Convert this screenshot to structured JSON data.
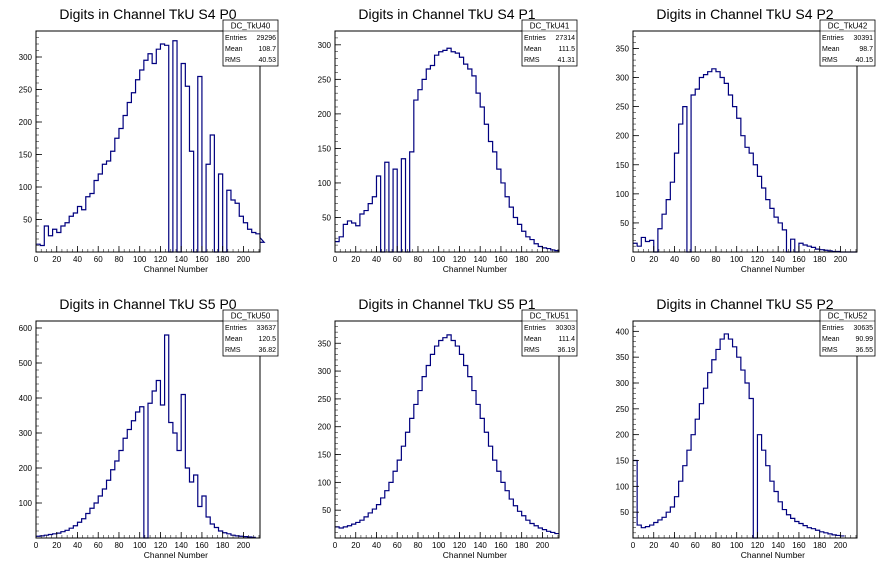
{
  "chart_data": [
    {
      "id": "DC_TkU40",
      "type": "histogram",
      "title": "Digits in Channel TkU S4 P0",
      "xlabel": "Channel Number",
      "xlim": [
        0,
        216
      ],
      "ylim": [
        0,
        340
      ],
      "xticks": [
        0,
        20,
        40,
        60,
        80,
        100,
        120,
        140,
        160,
        180,
        200
      ],
      "yticks": [
        50,
        100,
        150,
        200,
        250,
        300
      ],
      "stats": {
        "name": "DC_TkU40",
        "entries": "29296",
        "mean": "108.7",
        "rms": "40.53"
      },
      "bin_width": 4,
      "values": [
        12,
        10,
        40,
        25,
        35,
        30,
        40,
        45,
        55,
        60,
        70,
        65,
        85,
        90,
        110,
        120,
        135,
        140,
        155,
        175,
        190,
        210,
        230,
        245,
        265,
        280,
        295,
        305,
        290,
        312,
        320,
        318,
        0,
        325,
        0,
        290,
        255,
        155,
        0,
        270,
        0,
        135,
        180,
        0,
        120,
        0,
        95,
        80,
        75,
        55,
        45,
        35,
        30,
        28,
        22,
        15
      ]
    },
    {
      "id": "DC_TkU41",
      "type": "histogram",
      "title": "Digits in Channel TkU S4 P1",
      "xlabel": "Channel Number",
      "xlim": [
        0,
        216
      ],
      "ylim": [
        0,
        320
      ],
      "xticks": [
        0,
        20,
        40,
        60,
        80,
        100,
        120,
        140,
        160,
        180,
        200
      ],
      "yticks": [
        50,
        100,
        150,
        200,
        250,
        300
      ],
      "stats": {
        "name": "DC_TkU41",
        "entries": "27314",
        "mean": "111.5",
        "rms": "41.31"
      },
      "bin_width": 4,
      "values": [
        15,
        22,
        40,
        45,
        42,
        38,
        55,
        60,
        70,
        80,
        110,
        0,
        130,
        0,
        120,
        0,
        135,
        0,
        145,
        220,
        235,
        250,
        265,
        270,
        285,
        290,
        292,
        295,
        290,
        288,
        282,
        272,
        265,
        255,
        230,
        210,
        185,
        160,
        145,
        120,
        100,
        80,
        65,
        50,
        40,
        30,
        22,
        18,
        12,
        8,
        6,
        5,
        3,
        2
      ]
    },
    {
      "id": "DC_TkU42",
      "type": "histogram",
      "title": "Digits in Channel TkU S4 P2",
      "xlabel": "Channel Number",
      "xlim": [
        0,
        216
      ],
      "ylim": [
        0,
        380
      ],
      "xticks": [
        0,
        20,
        40,
        60,
        80,
        100,
        120,
        140,
        160,
        180,
        200
      ],
      "yticks": [
        50,
        100,
        150,
        200,
        250,
        300,
        350
      ],
      "stats": {
        "name": "DC_TkU42",
        "entries": "30391",
        "mean": "98.7",
        "rms": "40.15"
      },
      "bin_width": 4,
      "values": [
        15,
        10,
        25,
        18,
        20,
        0,
        40,
        65,
        90,
        120,
        170,
        220,
        250,
        0,
        270,
        280,
        300,
        305,
        310,
        315,
        310,
        300,
        290,
        270,
        250,
        230,
        200,
        180,
        170,
        150,
        130,
        110,
        90,
        75,
        60,
        50,
        38,
        0,
        22,
        0,
        15,
        12,
        10,
        8,
        5,
        4,
        3,
        2,
        1,
        1,
        0,
        0,
        0,
        0
      ]
    },
    {
      "id": "DC_TkU50",
      "type": "histogram",
      "title": "Digits in Channel TkU S5 P0",
      "xlabel": "Channel Number",
      "xlim": [
        0,
        216
      ],
      "ylim": [
        0,
        620
      ],
      "xticks": [
        0,
        20,
        40,
        60,
        80,
        100,
        120,
        140,
        160,
        180,
        200
      ],
      "yticks": [
        100,
        200,
        300,
        400,
        500,
        600
      ],
      "stats": {
        "name": "DC_TkU50",
        "entries": "33637",
        "mean": "120.5",
        "rms": "36.82"
      },
      "bin_width": 4,
      "values": [
        5,
        6,
        8,
        10,
        12,
        14,
        18,
        22,
        28,
        35,
        45,
        55,
        70,
        85,
        100,
        120,
        140,
        165,
        195,
        220,
        250,
        285,
        310,
        335,
        360,
        375,
        0,
        385,
        420,
        450,
        380,
        580,
        330,
        300,
        250,
        410,
        200,
        160,
        180,
        90,
        120,
        60,
        40,
        30,
        20,
        15,
        12,
        8,
        6,
        5,
        4,
        3,
        2
      ]
    },
    {
      "id": "DC_TkU51",
      "type": "histogram",
      "title": "Digits in Channel TkU S5 P1",
      "xlabel": "Channel Number",
      "xlim": [
        0,
        216
      ],
      "ylim": [
        0,
        390
      ],
      "xticks": [
        0,
        20,
        40,
        60,
        80,
        100,
        120,
        140,
        160,
        180,
        200
      ],
      "yticks": [
        50,
        100,
        150,
        200,
        250,
        300,
        350
      ],
      "stats": {
        "name": "DC_TkU51",
        "entries": "30303",
        "mean": "111.4",
        "rms": "36.19"
      },
      "bin_width": 4,
      "values": [
        20,
        18,
        20,
        22,
        25,
        28,
        32,
        38,
        45,
        52,
        60,
        72,
        85,
        100,
        120,
        140,
        165,
        190,
        215,
        240,
        265,
        290,
        310,
        330,
        345,
        355,
        360,
        365,
        355,
        345,
        330,
        310,
        290,
        265,
        240,
        215,
        190,
        165,
        140,
        120,
        100,
        85,
        70,
        58,
        48,
        40,
        32,
        26,
        22,
        18,
        15,
        12,
        10,
        8
      ]
    },
    {
      "id": "DC_TkU52",
      "type": "histogram",
      "title": "Digits in Channel TkU S5 P2",
      "xlabel": "Channel Number",
      "xlim": [
        0,
        216
      ],
      "ylim": [
        0,
        420
      ],
      "xticks": [
        0,
        20,
        40,
        60,
        80,
        100,
        120,
        140,
        160,
        180,
        200
      ],
      "yticks": [
        50,
        100,
        150,
        200,
        250,
        300,
        350,
        400
      ],
      "stats": {
        "name": "DC_TkU52",
        "entries": "30635",
        "mean": "90.99",
        "rms": "36.55"
      },
      "bin_width": 4,
      "values": [
        150,
        25,
        20,
        22,
        25,
        30,
        35,
        40,
        50,
        60,
        80,
        110,
        140,
        170,
        200,
        230,
        260,
        290,
        320,
        345,
        365,
        385,
        395,
        385,
        370,
        350,
        325,
        300,
        270,
        0,
        200,
        170,
        140,
        110,
        90,
        70,
        55,
        45,
        38,
        32,
        28,
        24,
        20,
        18,
        15,
        12,
        10,
        8,
        6,
        5,
        4
      ]
    }
  ]
}
